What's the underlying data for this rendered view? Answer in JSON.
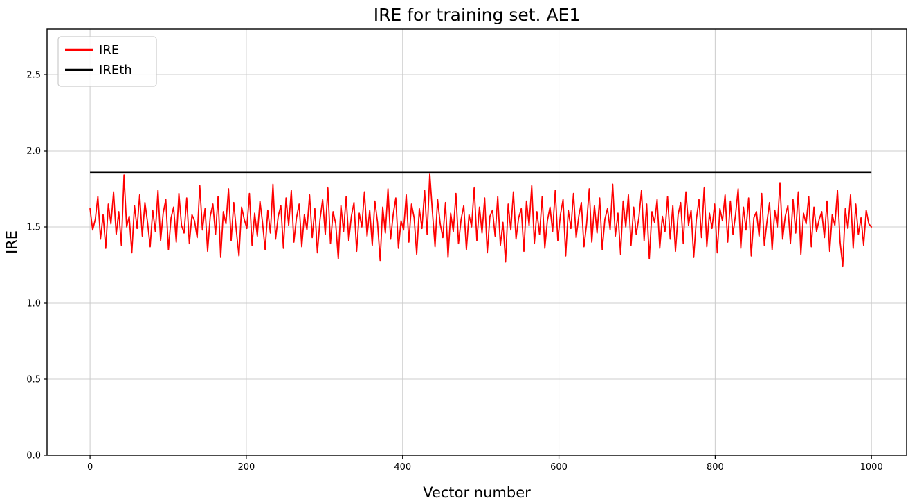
{
  "figure": {
    "background": "#ffffff",
    "grid_color": "#cccccc",
    "axis_color": "#000000"
  },
  "chart_data": {
    "type": "line",
    "title": "IRE for training set. AE1",
    "xlabel": "Vector number",
    "ylabel": "IRE",
    "xlim": [
      -55,
      1045
    ],
    "ylim": [
      0,
      2.8
    ],
    "x_ticks": [
      0,
      200,
      400,
      600,
      800,
      1000
    ],
    "y_ticks": [
      0.0,
      0.5,
      1.0,
      1.5,
      2.0,
      2.5
    ],
    "grid": true,
    "legend_position": "upper left",
    "legend_entries": [
      {
        "label": "IRE",
        "color": "#ff0000"
      },
      {
        "label": "IREth",
        "color": "#000000"
      }
    ],
    "series": [
      {
        "name": "IRE",
        "color": "#ff0000",
        "kind": "noisy-line",
        "x_start": 0,
        "x_end": 1000,
        "n_points_original": 1000,
        "mean": 1.53,
        "min": 1.24,
        "max": 1.85,
        "values": [
          1.62,
          1.48,
          1.55,
          1.7,
          1.42,
          1.58,
          1.36,
          1.65,
          1.52,
          1.73,
          1.45,
          1.6,
          1.38,
          1.84,
          1.5,
          1.57,
          1.33,
          1.64,
          1.49,
          1.71,
          1.44,
          1.66,
          1.53,
          1.37,
          1.61,
          1.47,
          1.74,
          1.41,
          1.59,
          1.68,
          1.35,
          1.56,
          1.63,
          1.4,
          1.72,
          1.51,
          1.46,
          1.69,
          1.39,
          1.58,
          1.54,
          1.43,
          1.77,
          1.48,
          1.62,
          1.34,
          1.57,
          1.65,
          1.45,
          1.7,
          1.3,
          1.6,
          1.52,
          1.75,
          1.41,
          1.66,
          1.47,
          1.31,
          1.63,
          1.55,
          1.49,
          1.72,
          1.38,
          1.59,
          1.44,
          1.67,
          1.53,
          1.35,
          1.61,
          1.46,
          1.78,
          1.42,
          1.57,
          1.64,
          1.36,
          1.69,
          1.51,
          1.74,
          1.4,
          1.56,
          1.65,
          1.37,
          1.58,
          1.48,
          1.71,
          1.43,
          1.62,
          1.33,
          1.55,
          1.68,
          1.45,
          1.76,
          1.39,
          1.6,
          1.52,
          1.29,
          1.64,
          1.47,
          1.7,
          1.41,
          1.57,
          1.66,
          1.34,
          1.59,
          1.5,
          1.73,
          1.44,
          1.61,
          1.38,
          1.67,
          1.53,
          1.28,
          1.63,
          1.46,
          1.75,
          1.42,
          1.58,
          1.69,
          1.36,
          1.54,
          1.48,
          1.71,
          1.4,
          1.65,
          1.56,
          1.32,
          1.62,
          1.49,
          1.74,
          1.45,
          1.85,
          1.6,
          1.37,
          1.68,
          1.52,
          1.43,
          1.66,
          1.3,
          1.59,
          1.47,
          1.72,
          1.39,
          1.55,
          1.64,
          1.35,
          1.58,
          1.5,
          1.76,
          1.41,
          1.63,
          1.46,
          1.69,
          1.33,
          1.57,
          1.61,
          1.44,
          1.7,
          1.38,
          1.53,
          1.27,
          1.65,
          1.48,
          1.73,
          1.42,
          1.56,
          1.62,
          1.34,
          1.67,
          1.51,
          1.77,
          1.39,
          1.6,
          1.45,
          1.7,
          1.36,
          1.54,
          1.63,
          1.47,
          1.74,
          1.41,
          1.58,
          1.68,
          1.31,
          1.61,
          1.49,
          1.72,
          1.43,
          1.57,
          1.66,
          1.37,
          1.52,
          1.75,
          1.4,
          1.64,
          1.46,
          1.69,
          1.35,
          1.55,
          1.62,
          1.48,
          1.78,
          1.44,
          1.59,
          1.32,
          1.67,
          1.5,
          1.71,
          1.38,
          1.63,
          1.45,
          1.56,
          1.74,
          1.41,
          1.65,
          1.29,
          1.6,
          1.53,
          1.68,
          1.36,
          1.57,
          1.47,
          1.7,
          1.42,
          1.64,
          1.34,
          1.58,
          1.66,
          1.39,
          1.73,
          1.51,
          1.61,
          1.3,
          1.55,
          1.68,
          1.43,
          1.76,
          1.37,
          1.59,
          1.49,
          1.65,
          1.33,
          1.62,
          1.54,
          1.71,
          1.4,
          1.67,
          1.45,
          1.58,
          1.75,
          1.36,
          1.63,
          1.48,
          1.69,
          1.31,
          1.56,
          1.6,
          1.44,
          1.72,
          1.38,
          1.53,
          1.66,
          1.35,
          1.61,
          1.5,
          1.79,
          1.42,
          1.57,
          1.64,
          1.39,
          1.68,
          1.46,
          1.73,
          1.32,
          1.59,
          1.52,
          1.7,
          1.37,
          1.63,
          1.47,
          1.55,
          1.6,
          1.43,
          1.67,
          1.34,
          1.58,
          1.51,
          1.74,
          1.4,
          1.24,
          1.62,
          1.49,
          1.71,
          1.36,
          1.65,
          1.45,
          1.56,
          1.38,
          1.61,
          1.52,
          1.5
        ]
      },
      {
        "name": "IREth",
        "color": "#000000",
        "kind": "horizontal-line",
        "x_start": 0,
        "x_end": 1000,
        "value": 1.86
      }
    ]
  }
}
